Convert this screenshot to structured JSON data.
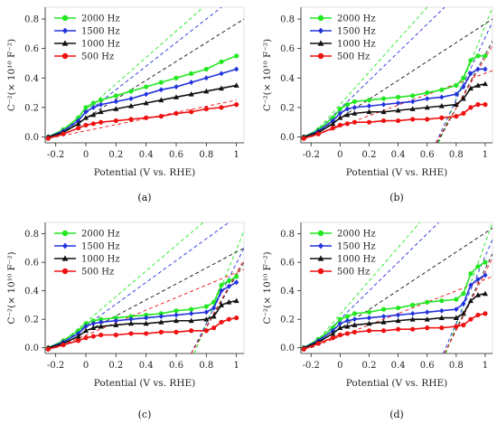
{
  "chart_data": [
    {
      "caption": "(a)",
      "type": "line",
      "xlabel": "Potential (V vs. RHE)",
      "ylabel": "C⁻²(× 10¹⁰ F⁻²)",
      "xlim": [
        -0.27,
        1.05
      ],
      "ylim": [
        -0.04,
        0.88
      ],
      "xticks": [
        "-0.2",
        "0",
        "0.2",
        "0.4",
        "0.6",
        "0.8",
        "1"
      ],
      "yticks": [
        "0.0",
        "0.2",
        "0.4",
        "0.6",
        "0.8"
      ],
      "series": [
        {
          "name": "2000 Hz",
          "color": "#22e822",
          "marker": "circle",
          "x": [
            -0.25,
            -0.15,
            -0.05,
            0,
            0.05,
            0.1,
            0.2,
            0.3,
            0.4,
            0.5,
            0.6,
            0.7,
            0.8,
            0.9,
            1.0
          ],
          "y": [
            0.0,
            0.05,
            0.13,
            0.2,
            0.23,
            0.25,
            0.28,
            0.31,
            0.34,
            0.37,
            0.4,
            0.43,
            0.46,
            0.51,
            0.55
          ],
          "fit": [
            [
              -0.2,
              0.0
            ],
            [
              0.78,
              0.88
            ]
          ]
        },
        {
          "name": "1500 Hz",
          "color": "#2233dd",
          "marker": "diamond",
          "x": [
            -0.25,
            -0.15,
            -0.05,
            0,
            0.05,
            0.1,
            0.2,
            0.3,
            0.4,
            0.5,
            0.6,
            0.7,
            0.8,
            0.9,
            1.0
          ],
          "y": [
            0.0,
            0.04,
            0.11,
            0.17,
            0.2,
            0.22,
            0.24,
            0.26,
            0.29,
            0.32,
            0.34,
            0.37,
            0.4,
            0.43,
            0.46
          ],
          "fit": [
            [
              -0.2,
              0.0
            ],
            [
              0.9,
              0.88
            ]
          ]
        },
        {
          "name": "1000 Hz",
          "color": "#111111",
          "marker": "triangle",
          "x": [
            -0.25,
            -0.15,
            -0.05,
            0,
            0.05,
            0.1,
            0.2,
            0.3,
            0.4,
            0.5,
            0.6,
            0.7,
            0.8,
            0.9,
            1.0
          ],
          "y": [
            0.0,
            0.03,
            0.09,
            0.13,
            0.15,
            0.17,
            0.19,
            0.21,
            0.23,
            0.25,
            0.27,
            0.29,
            0.31,
            0.33,
            0.35
          ],
          "fit": [
            [
              -0.2,
              0.0
            ],
            [
              1.05,
              0.8
            ]
          ]
        },
        {
          "name": "500 Hz",
          "color": "#ee1111",
          "marker": "circle",
          "x": [
            -0.25,
            -0.15,
            -0.05,
            0,
            0.05,
            0.1,
            0.2,
            0.3,
            0.4,
            0.5,
            0.6,
            0.7,
            0.8,
            0.9,
            1.0
          ],
          "y": [
            -0.01,
            0.02,
            0.06,
            0.08,
            0.09,
            0.1,
            0.11,
            0.12,
            0.13,
            0.14,
            0.16,
            0.17,
            0.19,
            0.2,
            0.22
          ],
          "fit": [
            [
              -0.2,
              0.0
            ],
            [
              1.0,
              0.25
            ]
          ]
        }
      ]
    },
    {
      "caption": "(b)",
      "type": "line",
      "xlabel": "Potential (V vs. RHE)",
      "ylabel": "C⁻²(× 10¹⁰ F⁻²)",
      "xlim": [
        -0.27,
        1.05
      ],
      "ylim": [
        -0.04,
        0.88
      ],
      "xticks": [
        "-0.2",
        "0",
        "0.2",
        "0.4",
        "0.6",
        "0.8",
        "1"
      ],
      "yticks": [
        "0.0",
        "0.2",
        "0.4",
        "0.6",
        "0.8"
      ],
      "series": [
        {
          "name": "2000 Hz",
          "color": "#22e822",
          "marker": "circle",
          "x": [
            -0.25,
            -0.15,
            -0.05,
            0,
            0.05,
            0.1,
            0.2,
            0.3,
            0.4,
            0.5,
            0.6,
            0.7,
            0.8,
            0.85,
            0.9,
            0.95,
            1.0
          ],
          "y": [
            0.0,
            0.05,
            0.13,
            0.19,
            0.22,
            0.24,
            0.25,
            0.26,
            0.27,
            0.28,
            0.3,
            0.32,
            0.35,
            0.4,
            0.52,
            0.55,
            0.55
          ],
          "fit": [
            [
              -0.2,
              0.0
            ],
            [
              0.6,
              0.88
            ]
          ],
          "fit2": [
            [
              0.68,
              -0.04
            ],
            [
              1.05,
              0.88
            ]
          ]
        },
        {
          "name": "1500 Hz",
          "color": "#2233dd",
          "marker": "diamond",
          "x": [
            -0.25,
            -0.15,
            -0.05,
            0,
            0.05,
            0.1,
            0.2,
            0.3,
            0.4,
            0.5,
            0.6,
            0.7,
            0.8,
            0.85,
            0.9,
            0.95,
            1.0
          ],
          "y": [
            0.0,
            0.04,
            0.11,
            0.16,
            0.19,
            0.2,
            0.21,
            0.22,
            0.23,
            0.24,
            0.26,
            0.27,
            0.29,
            0.34,
            0.43,
            0.46,
            0.46
          ],
          "fit": [
            [
              -0.2,
              0.0
            ],
            [
              0.72,
              0.88
            ]
          ],
          "fit2": [
            [
              0.66,
              -0.04
            ],
            [
              1.05,
              0.78
            ]
          ]
        },
        {
          "name": "1000 Hz",
          "color": "#111111",
          "marker": "triangle",
          "x": [
            -0.25,
            -0.15,
            -0.05,
            0,
            0.05,
            0.1,
            0.2,
            0.3,
            0.4,
            0.5,
            0.6,
            0.7,
            0.8,
            0.85,
            0.9,
            0.95,
            1.0
          ],
          "y": [
            0.0,
            0.03,
            0.09,
            0.13,
            0.15,
            0.16,
            0.17,
            0.17,
            0.18,
            0.19,
            0.2,
            0.21,
            0.22,
            0.26,
            0.33,
            0.35,
            0.36
          ],
          "fit": [
            [
              -0.2,
              0.0
            ],
            [
              1.05,
              0.8
            ]
          ],
          "fit2": [
            [
              0.67,
              -0.04
            ],
            [
              1.05,
              0.65
            ]
          ]
        },
        {
          "name": "500 Hz",
          "color": "#ee1111",
          "marker": "circle",
          "x": [
            -0.25,
            -0.15,
            -0.05,
            0,
            0.05,
            0.1,
            0.2,
            0.3,
            0.4,
            0.5,
            0.6,
            0.7,
            0.8,
            0.85,
            0.9,
            0.95,
            1.0
          ],
          "y": [
            -0.01,
            0.02,
            0.06,
            0.08,
            0.09,
            0.1,
            0.1,
            0.11,
            0.11,
            0.12,
            0.12,
            0.13,
            0.14,
            0.16,
            0.2,
            0.22,
            0.22
          ],
          "fit": [
            [
              -0.2,
              0.0
            ],
            [
              1.05,
              0.45
            ]
          ],
          "fit2": [
            [
              0.66,
              -0.04
            ],
            [
              1.05,
              0.62
            ]
          ]
        }
      ]
    },
    {
      "caption": "(c)",
      "type": "line",
      "xlabel": "Potential (V vs. RHE)",
      "ylabel": "C⁻²(× 10¹⁰ F⁻²)",
      "xlim": [
        -0.27,
        1.05
      ],
      "ylim": [
        -0.04,
        0.88
      ],
      "xticks": [
        "-0.2",
        "0",
        "0.2",
        "0.4",
        "0.6",
        "0.8",
        "1"
      ],
      "yticks": [
        "0.0",
        "0.2",
        "0.4",
        "0.6",
        "0.8"
      ],
      "series": [
        {
          "name": "2000 Hz",
          "color": "#22e822",
          "marker": "circle",
          "x": [
            -0.25,
            -0.15,
            -0.05,
            0,
            0.05,
            0.1,
            0.2,
            0.3,
            0.4,
            0.5,
            0.6,
            0.7,
            0.8,
            0.85,
            0.9,
            0.95,
            1.0
          ],
          "y": [
            0.0,
            0.05,
            0.12,
            0.17,
            0.19,
            0.2,
            0.21,
            0.22,
            0.23,
            0.24,
            0.26,
            0.27,
            0.29,
            0.32,
            0.44,
            0.47,
            0.5
          ],
          "fit": [
            [
              -0.2,
              0.0
            ],
            [
              0.78,
              0.88
            ]
          ],
          "fit2": [
            [
              0.72,
              -0.04
            ],
            [
              1.05,
              0.82
            ]
          ]
        },
        {
          "name": "1500 Hz",
          "color": "#2233dd",
          "marker": "diamond",
          "x": [
            -0.25,
            -0.15,
            -0.05,
            0,
            0.05,
            0.1,
            0.2,
            0.3,
            0.4,
            0.5,
            0.6,
            0.7,
            0.8,
            0.85,
            0.9,
            0.95,
            1.0
          ],
          "y": [
            0.0,
            0.04,
            0.1,
            0.15,
            0.17,
            0.18,
            0.19,
            0.2,
            0.21,
            0.22,
            0.23,
            0.24,
            0.25,
            0.28,
            0.4,
            0.43,
            0.46
          ],
          "fit": [
            [
              -0.2,
              0.0
            ],
            [
              0.95,
              0.88
            ]
          ],
          "fit2": [
            [
              0.7,
              -0.04
            ],
            [
              1.05,
              0.7
            ]
          ]
        },
        {
          "name": "1000 Hz",
          "color": "#111111",
          "marker": "triangle",
          "x": [
            -0.25,
            -0.15,
            -0.05,
            0,
            0.05,
            0.1,
            0.2,
            0.3,
            0.4,
            0.5,
            0.6,
            0.7,
            0.8,
            0.85,
            0.9,
            0.95,
            1.0
          ],
          "y": [
            0.0,
            0.03,
            0.08,
            0.12,
            0.14,
            0.15,
            0.16,
            0.17,
            0.17,
            0.18,
            0.19,
            0.19,
            0.2,
            0.22,
            0.3,
            0.32,
            0.33
          ],
          "fit": [
            [
              -0.2,
              0.0
            ],
            [
              1.05,
              0.7
            ]
          ],
          "fit2": [
            [
              0.7,
              -0.04
            ],
            [
              1.05,
              0.6
            ]
          ]
        },
        {
          "name": "500 Hz",
          "color": "#ee1111",
          "marker": "circle",
          "x": [
            -0.25,
            -0.15,
            -0.05,
            0,
            0.05,
            0.1,
            0.2,
            0.3,
            0.4,
            0.5,
            0.6,
            0.7,
            0.8,
            0.85,
            0.9,
            0.95,
            1.0
          ],
          "y": [
            -0.01,
            0.02,
            0.05,
            0.07,
            0.08,
            0.09,
            0.09,
            0.1,
            0.1,
            0.11,
            0.11,
            0.12,
            0.12,
            0.14,
            0.18,
            0.2,
            0.21
          ],
          "fit": [
            [
              -0.2,
              0.0
            ],
            [
              1.05,
              0.55
            ]
          ],
          "fit2": [
            [
              0.7,
              -0.04
            ],
            [
              1.05,
              0.62
            ]
          ]
        }
      ]
    },
    {
      "caption": "(d)",
      "type": "line",
      "xlabel": "Potential (V vs. RHE)",
      "ylabel": "C⁻²(× 10¹⁰ F⁻²)",
      "xlim": [
        -0.27,
        1.05
      ],
      "ylim": [
        -0.04,
        0.88
      ],
      "xticks": [
        "-0.2",
        "0",
        "0.2",
        "0.4",
        "0.6",
        "0.8",
        "1"
      ],
      "yticks": [
        "0.0",
        "0.2",
        "0.4",
        "0.6",
        "0.8"
      ],
      "series": [
        {
          "name": "2000 Hz",
          "color": "#22e822",
          "marker": "circle",
          "x": [
            -0.25,
            -0.15,
            -0.05,
            0,
            0.05,
            0.1,
            0.2,
            0.3,
            0.4,
            0.5,
            0.6,
            0.7,
            0.8,
            0.85,
            0.9,
            0.95,
            1.0
          ],
          "y": [
            0.0,
            0.06,
            0.14,
            0.2,
            0.22,
            0.24,
            0.25,
            0.27,
            0.28,
            0.3,
            0.32,
            0.33,
            0.34,
            0.38,
            0.52,
            0.57,
            0.6
          ],
          "fit": [
            [
              -0.2,
              0.0
            ],
            [
              0.55,
              0.88
            ]
          ],
          "fit2": [
            [
              0.73,
              -0.04
            ],
            [
              1.05,
              0.88
            ]
          ]
        },
        {
          "name": "1500 Hz",
          "color": "#2233dd",
          "marker": "diamond",
          "x": [
            -0.25,
            -0.15,
            -0.05,
            0,
            0.05,
            0.1,
            0.2,
            0.3,
            0.4,
            0.5,
            0.6,
            0.7,
            0.8,
            0.85,
            0.9,
            0.95,
            1.0
          ],
          "y": [
            0.0,
            0.05,
            0.12,
            0.17,
            0.19,
            0.2,
            0.21,
            0.22,
            0.23,
            0.24,
            0.25,
            0.26,
            0.27,
            0.31,
            0.44,
            0.48,
            0.51
          ],
          "fit": [
            [
              -0.2,
              0.0
            ],
            [
              0.68,
              0.88
            ]
          ],
          "fit2": [
            [
              0.71,
              -0.04
            ],
            [
              1.05,
              0.76
            ]
          ]
        },
        {
          "name": "1000 Hz",
          "color": "#111111",
          "marker": "triangle",
          "x": [
            -0.25,
            -0.15,
            -0.05,
            0,
            0.05,
            0.1,
            0.2,
            0.3,
            0.4,
            0.5,
            0.6,
            0.7,
            0.8,
            0.85,
            0.9,
            0.95,
            1.0
          ],
          "y": [
            0.0,
            0.04,
            0.1,
            0.14,
            0.15,
            0.16,
            0.17,
            0.18,
            0.19,
            0.2,
            0.2,
            0.21,
            0.21,
            0.24,
            0.33,
            0.37,
            0.38
          ],
          "fit": [
            [
              -0.2,
              0.0
            ],
            [
              1.05,
              0.84
            ]
          ],
          "fit2": [
            [
              0.72,
              -0.04
            ],
            [
              1.05,
              0.66
            ]
          ]
        },
        {
          "name": "500 Hz",
          "color": "#ee1111",
          "marker": "circle",
          "x": [
            -0.25,
            -0.15,
            -0.05,
            0,
            0.05,
            0.1,
            0.2,
            0.3,
            0.4,
            0.5,
            0.6,
            0.7,
            0.8,
            0.85,
            0.9,
            0.95,
            1.0
          ],
          "y": [
            -0.01,
            0.03,
            0.07,
            0.09,
            0.1,
            0.11,
            0.12,
            0.12,
            0.13,
            0.13,
            0.14,
            0.14,
            0.15,
            0.16,
            0.2,
            0.23,
            0.24
          ],
          "fit": [
            [
              -0.2,
              0.0
            ],
            [
              1.05,
              0.5
            ]
          ],
          "fit2": [
            [
              0.72,
              -0.04
            ],
            [
              1.05,
              0.63
            ]
          ]
        }
      ]
    }
  ]
}
